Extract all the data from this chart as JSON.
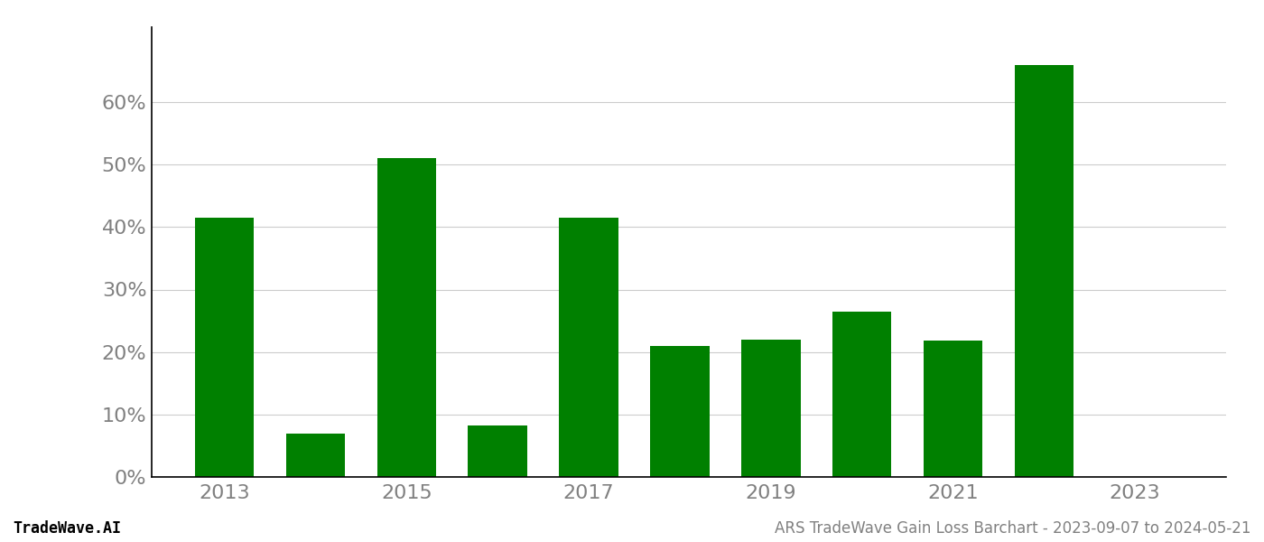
{
  "years": [
    2013,
    2014,
    2015,
    2016,
    2017,
    2018,
    2019,
    2020,
    2021,
    2022
  ],
  "values": [
    0.415,
    0.07,
    0.51,
    0.082,
    0.415,
    0.21,
    0.22,
    0.265,
    0.218,
    0.66
  ],
  "bar_color": "#008000",
  "ylim": [
    0,
    0.72
  ],
  "yticks": [
    0.0,
    0.1,
    0.2,
    0.3,
    0.4,
    0.5,
    0.6
  ],
  "xlabel_years": [
    2013,
    2015,
    2017,
    2019,
    2021,
    2023
  ],
  "footer_left": "TradeWave.AI",
  "footer_right": "ARS TradeWave Gain Loss Barchart - 2023-09-07 to 2024-05-21",
  "background_color": "#ffffff",
  "grid_color": "#cccccc",
  "tick_color": "#808080",
  "footer_left_color": "#000000",
  "bar_width": 0.65,
  "xlim_left": 2012.2,
  "xlim_right": 2024.0,
  "left_spine_color": "#000000",
  "bottom_spine_color": "#000000",
  "tick_fontsize": 16,
  "footer_fontsize": 12
}
